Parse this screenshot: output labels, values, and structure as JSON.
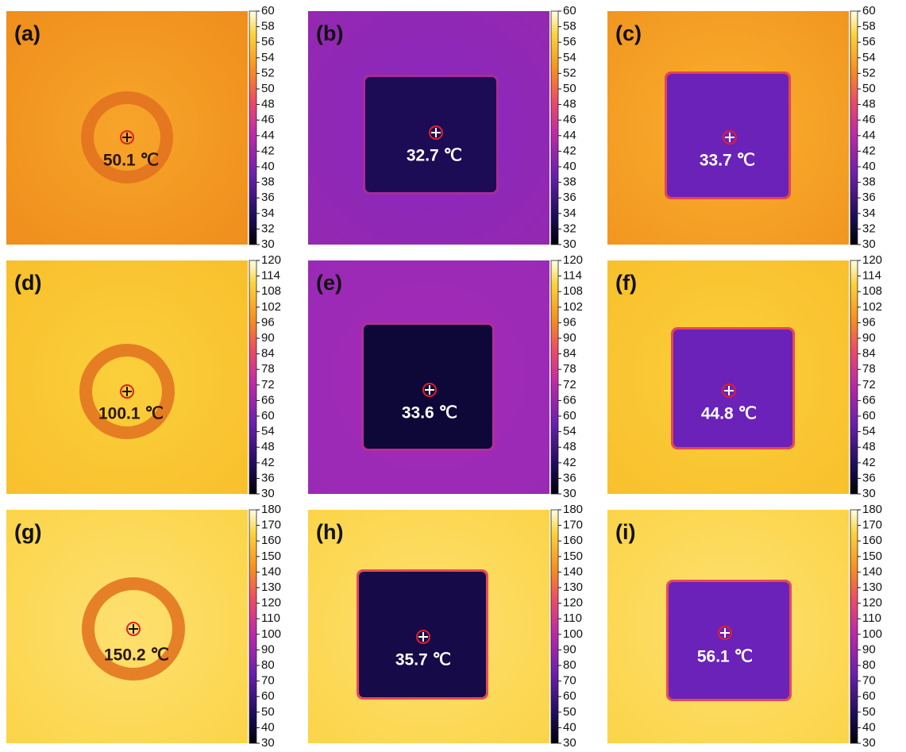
{
  "rows": [
    {
      "colorbar": {
        "range": [
          30,
          60
        ],
        "ticks": [
          30,
          32,
          34,
          36,
          38,
          40,
          42,
          44,
          46,
          48,
          50,
          52,
          54,
          56,
          58,
          60
        ]
      },
      "panels": [
        {
          "label": "(a)",
          "reading": "50.1 ℃"
        },
        {
          "label": "(b)",
          "reading": "32.7 ℃"
        },
        {
          "label": "(c)",
          "reading": "33.7 ℃"
        }
      ]
    },
    {
      "colorbar": {
        "range": [
          30,
          120
        ],
        "ticks": [
          30,
          36,
          42,
          48,
          54,
          60,
          66,
          72,
          78,
          84,
          90,
          96,
          102,
          108,
          114,
          120
        ]
      },
      "panels": [
        {
          "label": "(d)",
          "reading": "100.1 ℃"
        },
        {
          "label": "(e)",
          "reading": "33.6 ℃"
        },
        {
          "label": "(f)",
          "reading": "44.8 ℃"
        }
      ]
    },
    {
      "colorbar": {
        "range": [
          30,
          180
        ],
        "ticks": [
          30,
          40,
          50,
          60,
          70,
          80,
          90,
          100,
          110,
          120,
          130,
          140,
          150,
          160,
          170,
          180
        ]
      },
      "panels": [
        {
          "label": "(g)",
          "reading": "150.2 ℃"
        },
        {
          "label": "(h)",
          "reading": "35.7 ℃"
        },
        {
          "label": "(i)",
          "reading": "56.1 ℃"
        }
      ]
    }
  ]
}
